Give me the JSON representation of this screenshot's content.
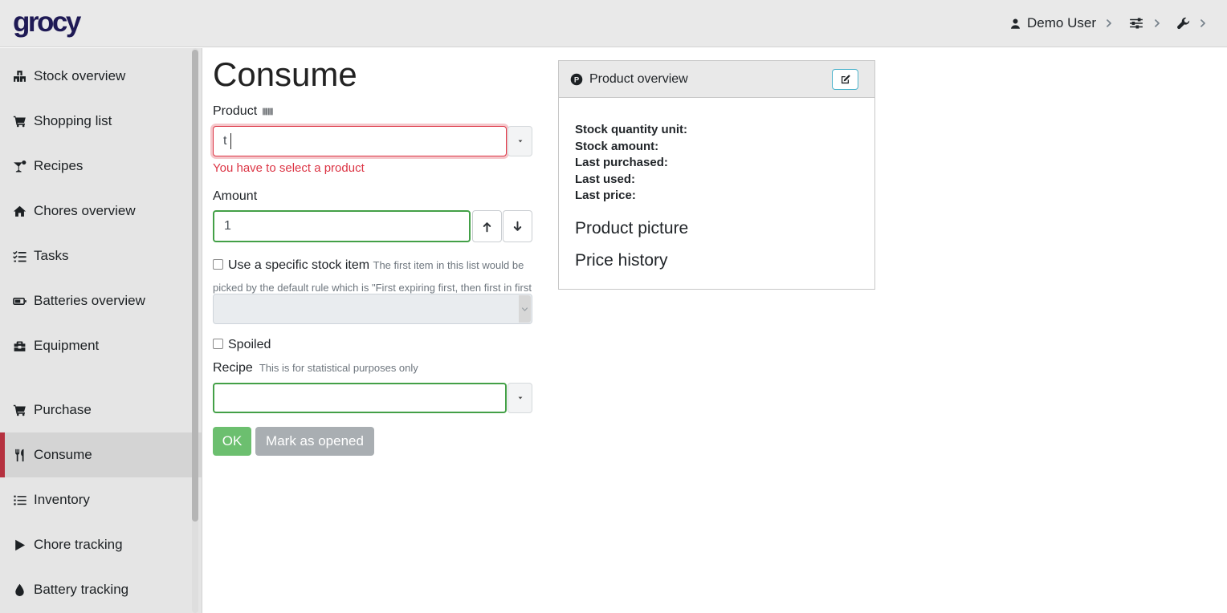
{
  "navbar": {
    "logo": "grocy",
    "user_label": "Demo User"
  },
  "sidebar": {
    "groups": [
      [
        {
          "label": "Stock overview",
          "icon": "boxes-icon",
          "active": false
        },
        {
          "label": "Shopping list",
          "icon": "shopping-cart-icon",
          "active": false
        },
        {
          "label": "Recipes",
          "icon": "cocktail-icon",
          "active": false
        },
        {
          "label": "Chores overview",
          "icon": "home-icon",
          "active": false
        },
        {
          "label": "Tasks",
          "icon": "tasks-icon",
          "active": false
        },
        {
          "label": "Batteries overview",
          "icon": "battery-icon",
          "active": false
        },
        {
          "label": "Equipment",
          "icon": "toolbox-icon",
          "active": false
        }
      ],
      [
        {
          "label": "Purchase",
          "icon": "shopping-cart-icon",
          "active": false
        },
        {
          "label": "Consume",
          "icon": "utensils-icon",
          "active": true
        },
        {
          "label": "Inventory",
          "icon": "list-icon",
          "active": false
        },
        {
          "label": "Chore tracking",
          "icon": "play-icon",
          "active": false
        },
        {
          "label": "Battery tracking",
          "icon": "droplet-icon",
          "active": false
        }
      ]
    ]
  },
  "form": {
    "title": "Consume",
    "product_label": "Product",
    "product_value": "t",
    "product_error": "You have to select a product",
    "amount_label": "Amount",
    "amount_value": "1",
    "stock_item_label": "Use a specific stock item",
    "stock_item_note": "The first item in this list would be picked by the default rule which is \"First expiring first, then first in first out\"",
    "spoiled_label": "Spoiled",
    "recipe_label": "Recipe",
    "recipe_note": "This is for statistical purposes only",
    "recipe_value": "",
    "ok_label": "OK",
    "mark_opened_label": "Mark as opened"
  },
  "overview": {
    "title": "Product overview",
    "fields": [
      "Stock quantity unit:",
      "Stock amount:",
      "Last purchased:",
      "Last used:",
      "Last price:"
    ],
    "picture_heading": "Product picture",
    "price_heading": "Price history"
  },
  "colors": {
    "active_accent": "#b5313f",
    "error": "#dc3545",
    "input_valid_border": "#43a047",
    "ok_button": "#6cbf6f",
    "gray_button": "#a9aeb2",
    "edit_button_teal": "#4db3cc",
    "logo": "#1f1a55"
  }
}
